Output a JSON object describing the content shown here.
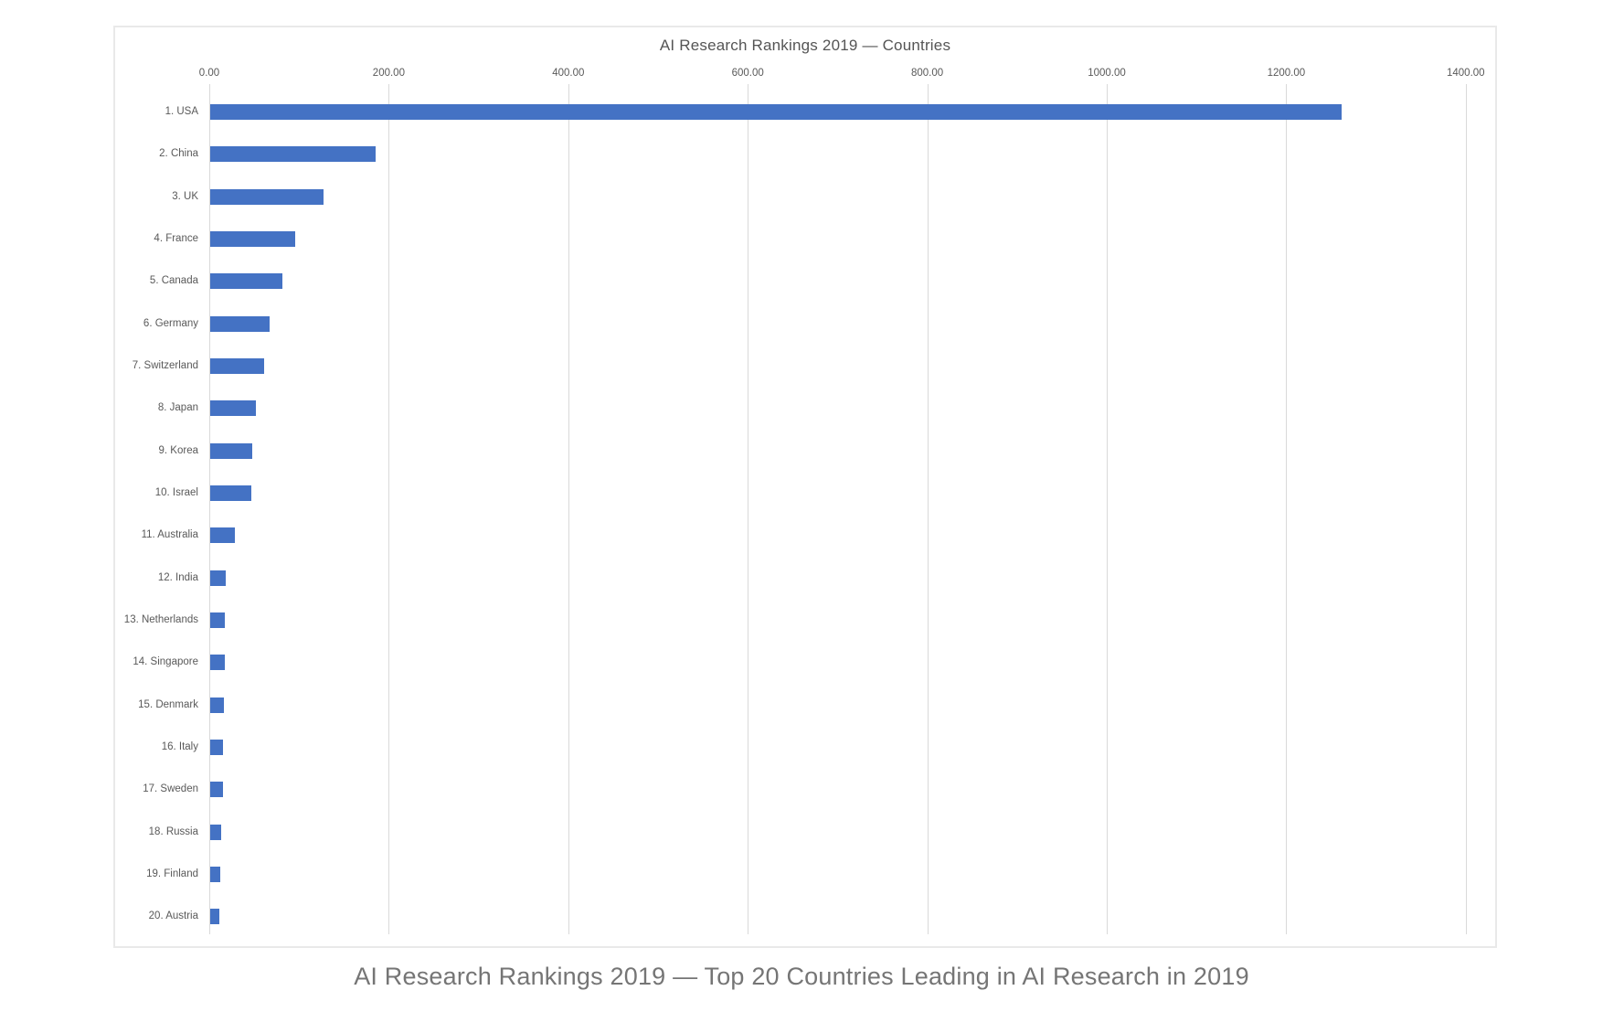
{
  "page": {
    "caption": "AI Research Rankings 2019 — Top 20 Countries Leading in AI Research in 2019"
  },
  "chart_data": {
    "type": "bar",
    "orientation": "horizontal",
    "title": "AI Research Rankings 2019 — Countries",
    "categories": [
      "1. USA",
      "2. China",
      "3. UK",
      "4. France",
      "5. Canada",
      "6. Germany",
      "7. Switzerland",
      "8. Japan",
      "9. Korea",
      "10. Israel",
      "11. Australia",
      "12. India",
      "13. Netherlands",
      "14. Singapore",
      "15. Denmark",
      "16. Italy",
      "17. Sweden",
      "18. Russia",
      "19. Finland",
      "20. Austria"
    ],
    "values": [
      1260.3,
      184.4,
      126.2,
      94.4,
      80.5,
      66.6,
      59.6,
      50.8,
      46.5,
      45.5,
      27.5,
      17.6,
      16.6,
      15.8,
      14.9,
      14.5,
      14.2,
      12.1,
      11.3,
      10.3
    ],
    "xlabel": "",
    "ylabel": "",
    "xlim": [
      0,
      1400
    ],
    "tick_interval": 200,
    "x_ticks": [
      "0.00",
      "200.00",
      "400.00",
      "600.00",
      "800.00",
      "1000.00",
      "1200.00",
      "1400.00"
    ],
    "grid": true,
    "legend": false,
    "colors": {
      "bar": "#4472C4",
      "gridline": "#d9d9d9",
      "axis_labels": "#595959",
      "title": "#555555",
      "caption": "#757575"
    }
  }
}
